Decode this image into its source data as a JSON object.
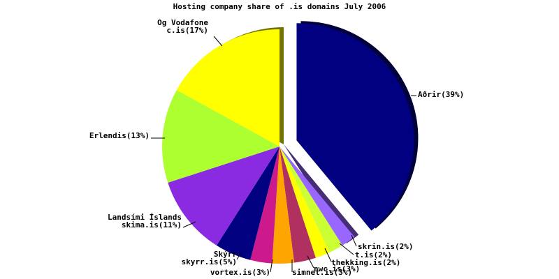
{
  "chart_data": {
    "type": "pie",
    "title": "Hosting company share of .is domains July 2006",
    "slices": [
      {
        "label": "Aðrir(39%)",
        "value": 39,
        "color": "#000080",
        "exploded": true
      },
      {
        "label": "skrin.is(2%)",
        "value": 2,
        "color": "#9966ff"
      },
      {
        "label": "t.is(2%)",
        "value": 2,
        "color": "#ccff33"
      },
      {
        "label": "thekking.is(2%)",
        "value": 2,
        "color": "#ffff00"
      },
      {
        "label": "nwc.is(3%)",
        "value": 3,
        "color": "#b03060"
      },
      {
        "label": "simnet.is(3%)",
        "value": 3,
        "color": "#ffa500"
      },
      {
        "label": "vortex.is(3%)",
        "value": 3,
        "color": "#cc1a8c"
      },
      {
        "label": "Skýrr\nskyrr.is(5%)",
        "value": 5,
        "color": "#000080"
      },
      {
        "label": "Landsími Íslands\nskima.is(11%)",
        "value": 11,
        "color": "#8a2be2"
      },
      {
        "label": "Erlendis(13%)",
        "value": 13,
        "color": "#adff2f"
      },
      {
        "label": "Og Vodafone\nc.is(17%)",
        "value": 17,
        "color": "#ffff00"
      }
    ],
    "legend": "none"
  }
}
